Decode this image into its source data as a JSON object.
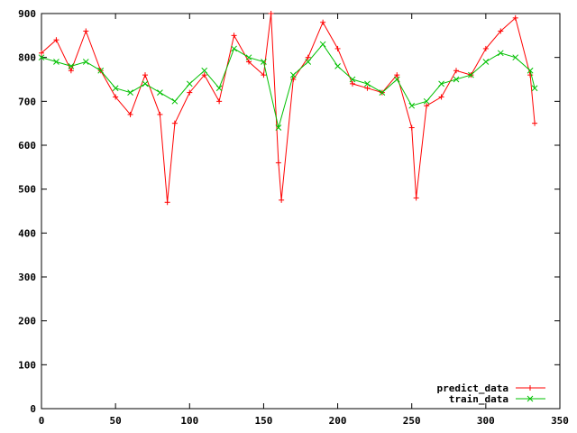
{
  "chart_data": {
    "type": "line",
    "title": "",
    "xlabel": "",
    "ylabel": "",
    "xlim": [
      0,
      350
    ],
    "ylim": [
      0,
      900
    ],
    "xticks": [
      0,
      50,
      100,
      150,
      200,
      250,
      300,
      350
    ],
    "yticks": [
      0,
      100,
      200,
      300,
      400,
      500,
      600,
      700,
      800,
      900
    ],
    "grid": false,
    "legend_position": "bottom-right",
    "series": [
      {
        "name": "predict_data",
        "color": "#ff0000",
        "marker": "plus",
        "x": [
          0,
          10,
          20,
          30,
          40,
          50,
          60,
          70,
          80,
          85,
          90,
          100,
          110,
          120,
          130,
          140,
          150,
          155,
          160,
          162,
          170,
          180,
          190,
          200,
          210,
          220,
          230,
          240,
          250,
          253,
          260,
          270,
          280,
          290,
          300,
          310,
          320,
          330,
          333
        ],
        "y": [
          810,
          840,
          770,
          860,
          770,
          710,
          670,
          760,
          670,
          470,
          650,
          720,
          760,
          700,
          850,
          790,
          760,
          900,
          560,
          475,
          750,
          800,
          880,
          820,
          740,
          730,
          720,
          760,
          640,
          480,
          690,
          710,
          770,
          760,
          820,
          860,
          890,
          760,
          650
        ]
      },
      {
        "name": "train_data",
        "color": "#00c000",
        "marker": "x",
        "x": [
          0,
          10,
          20,
          30,
          40,
          50,
          60,
          70,
          80,
          90,
          100,
          110,
          120,
          130,
          140,
          150,
          160,
          170,
          180,
          190,
          200,
          210,
          220,
          230,
          240,
          250,
          260,
          270,
          280,
          290,
          300,
          310,
          320,
          330,
          333
        ],
        "y": [
          800,
          790,
          780,
          790,
          770,
          730,
          720,
          740,
          720,
          700,
          740,
          770,
          730,
          820,
          800,
          790,
          640,
          760,
          790,
          830,
          780,
          750,
          740,
          720,
          750,
          690,
          700,
          740,
          750,
          760,
          790,
          810,
          800,
          770,
          730
        ]
      }
    ]
  }
}
